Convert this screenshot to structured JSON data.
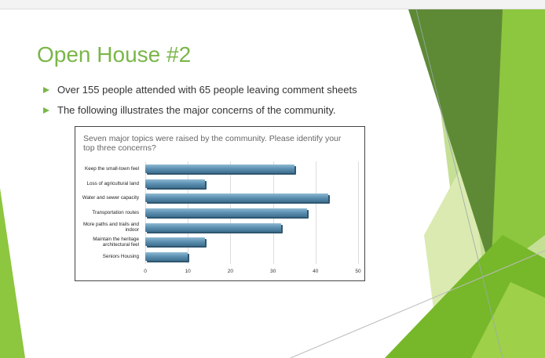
{
  "slide": {
    "title": "Open House #2",
    "bullets": [
      "Over 155 people attended with 65 people leaving comment sheets",
      "The following illustrates the major concerns of the community."
    ]
  },
  "chart_data": {
    "type": "bar",
    "orientation": "horizontal",
    "title": "Seven major topics were raised by the community. Please identify your top three concerns?",
    "categories": [
      "Keep the small-town feel",
      "Loss of agricultural land",
      "Water and sewer capacity",
      "Transportation routes",
      "More paths and trails and indoor",
      "Maintain the heritage architectural feel",
      "Seniors Housing"
    ],
    "values": [
      35,
      14,
      43,
      38,
      32,
      14,
      10
    ],
    "color": "#5b8fb0",
    "xlim": [
      0,
      50
    ],
    "xticks": [
      0,
      10,
      20,
      30,
      40,
      50
    ],
    "grid": true
  }
}
